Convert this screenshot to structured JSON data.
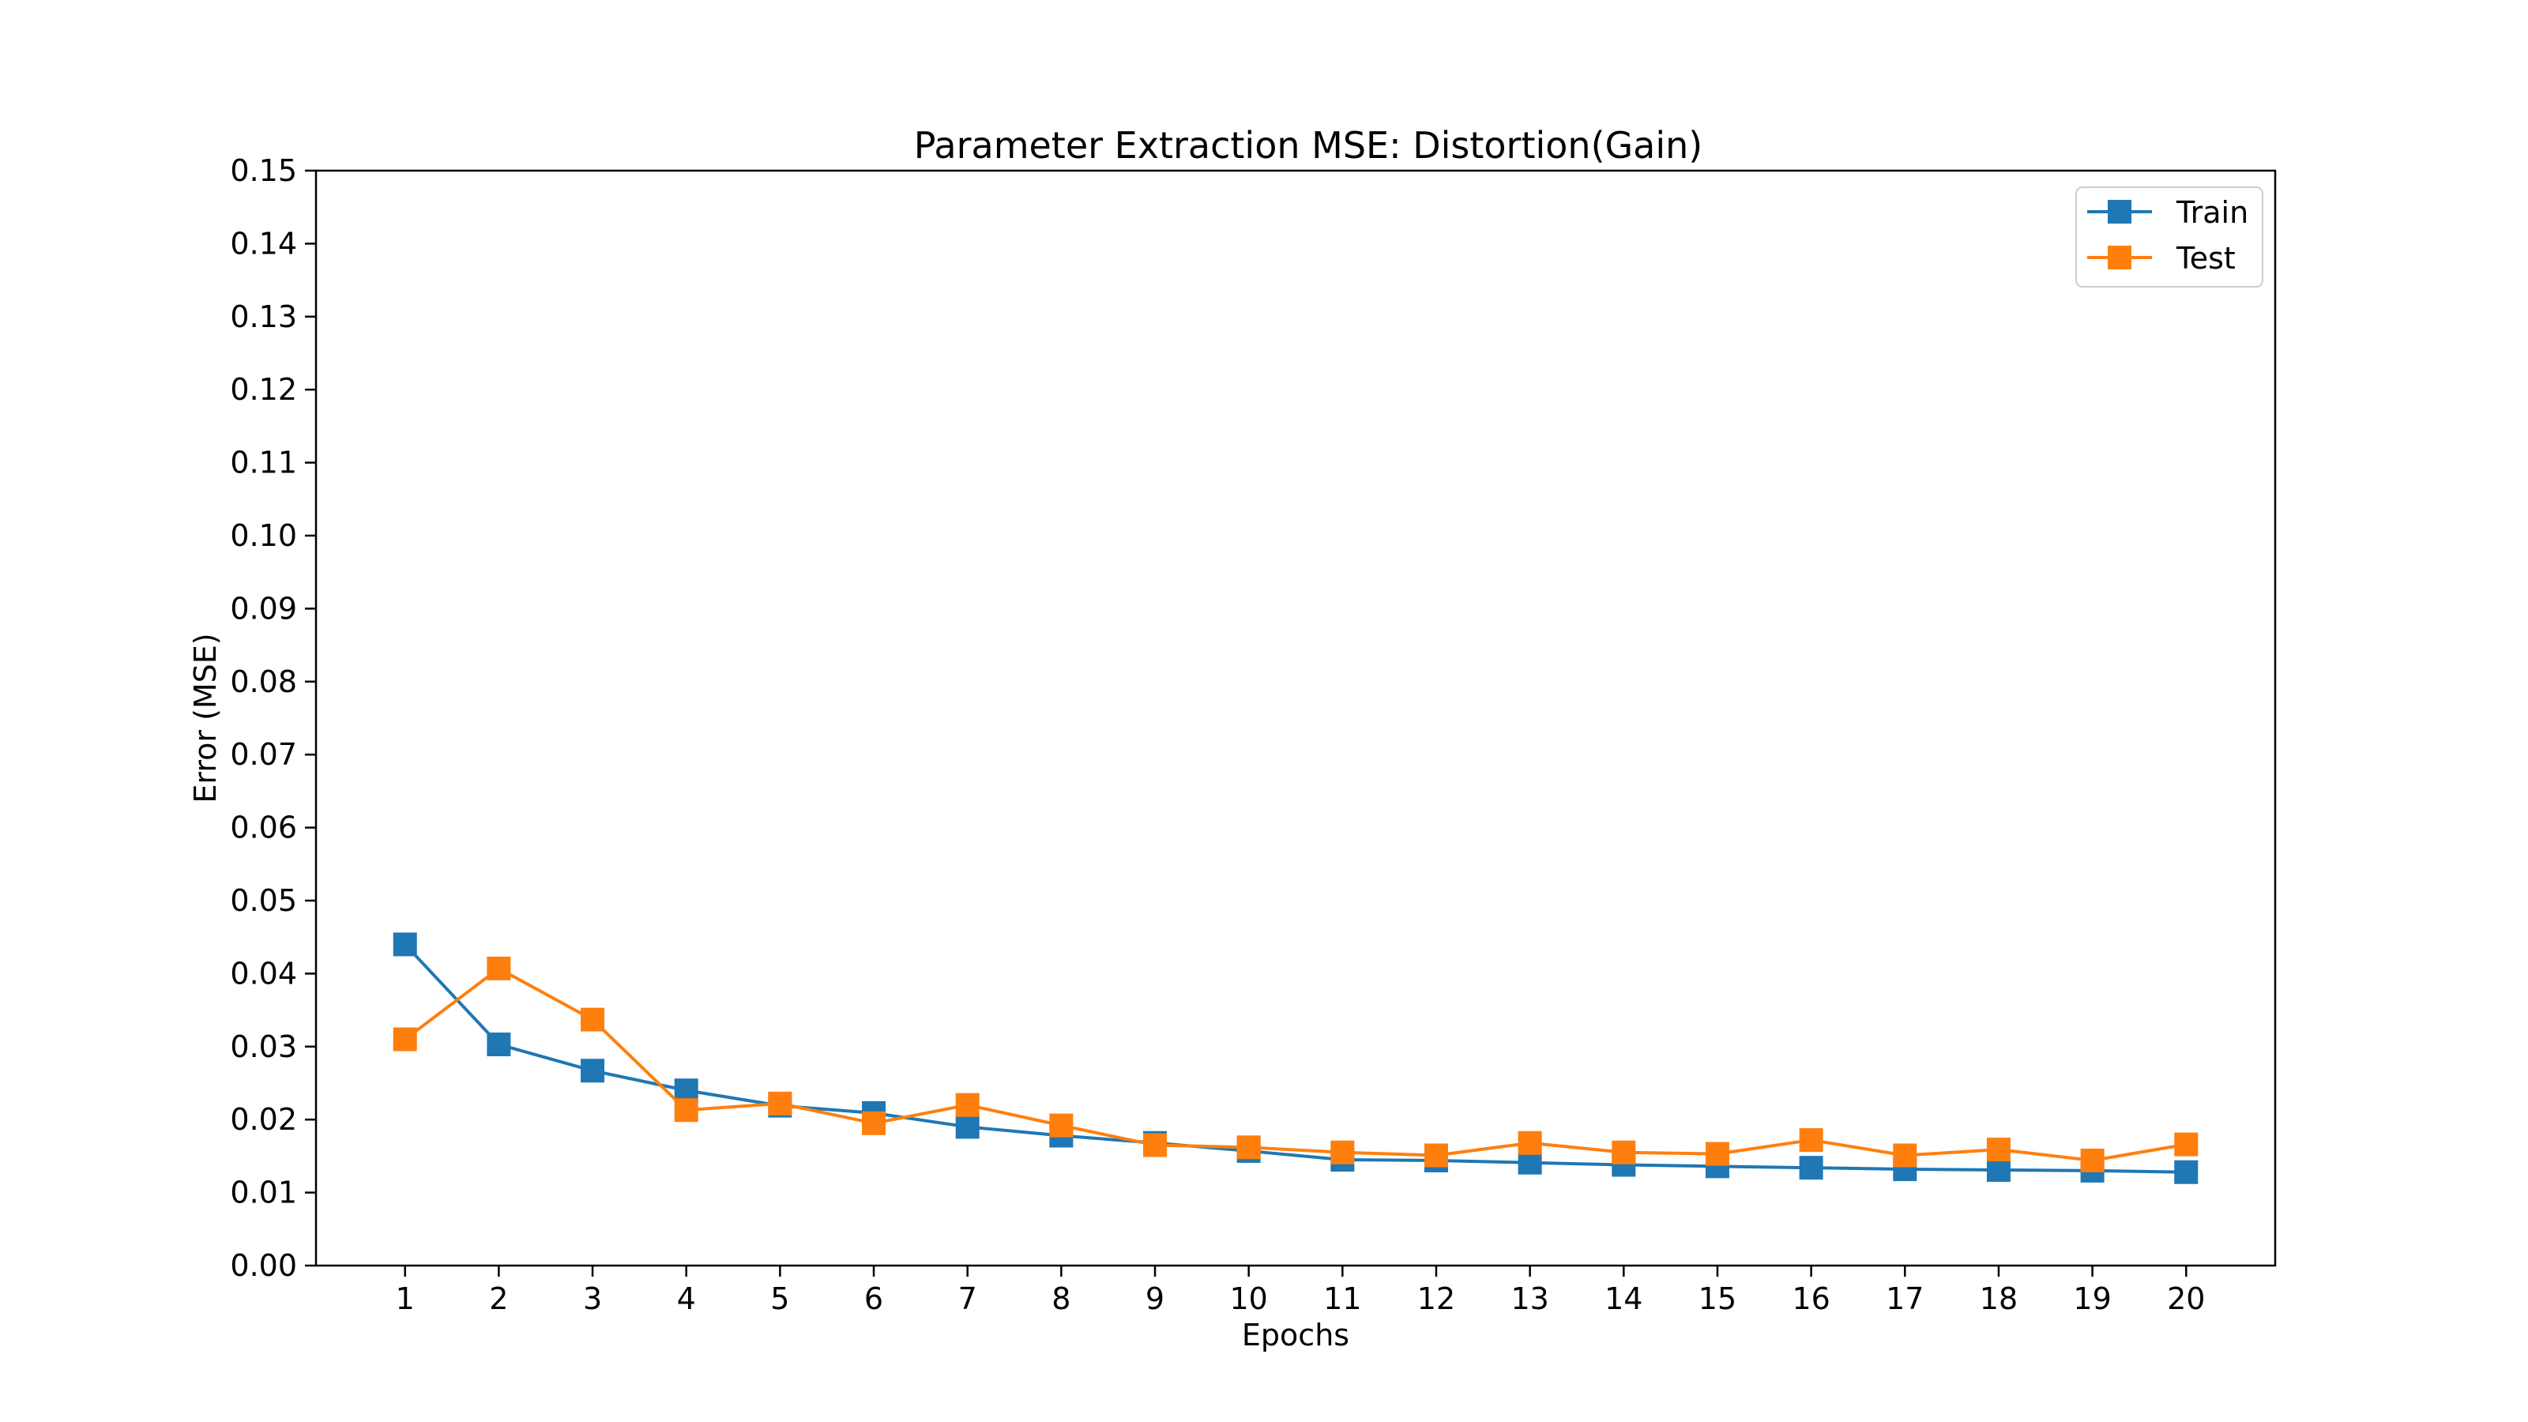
{
  "chart_data": {
    "type": "line",
    "title": "Parameter Extraction MSE: Distortion(Gain)",
    "xlabel": "Epochs",
    "ylabel": "Error (MSE)",
    "x": [
      1,
      2,
      3,
      4,
      5,
      6,
      7,
      8,
      9,
      10,
      11,
      12,
      13,
      14,
      15,
      16,
      17,
      18,
      19,
      20
    ],
    "x_tick_labels": [
      "1",
      "2",
      "3",
      "4",
      "5",
      "6",
      "7",
      "8",
      "9",
      "10",
      "11",
      "12",
      "13",
      "14",
      "15",
      "16",
      "17",
      "18",
      "19",
      "20"
    ],
    "ylim": [
      0.0,
      0.15
    ],
    "y_ticks": [
      0.0,
      0.01,
      0.02,
      0.03,
      0.04,
      0.05,
      0.06,
      0.07,
      0.08,
      0.09,
      0.1,
      0.11,
      0.12,
      0.13,
      0.14,
      0.15
    ],
    "y_tick_labels": [
      "0.00",
      "0.01",
      "0.02",
      "0.03",
      "0.04",
      "0.05",
      "0.06",
      "0.07",
      "0.08",
      "0.09",
      "0.10",
      "0.11",
      "0.12",
      "0.13",
      "0.14",
      "0.15"
    ],
    "grid": false,
    "legend_position": "top-right",
    "marker": "square",
    "series": [
      {
        "name": "Train",
        "color": "#1f77b4",
        "values": [
          0.044,
          0.0303,
          0.0267,
          0.024,
          0.0219,
          0.0209,
          0.019,
          0.0178,
          0.0168,
          0.0157,
          0.0145,
          0.0144,
          0.0141,
          0.0138,
          0.0136,
          0.0134,
          0.0132,
          0.0131,
          0.013,
          0.0128
        ]
      },
      {
        "name": "Test",
        "color": "#ff7f0e",
        "values": [
          0.031,
          0.0407,
          0.0337,
          0.0213,
          0.0222,
          0.0195,
          0.022,
          0.0192,
          0.0165,
          0.0162,
          0.0155,
          0.0151,
          0.0168,
          0.0155,
          0.0153,
          0.0172,
          0.0151,
          0.0159,
          0.0144,
          0.0166
        ]
      }
    ]
  }
}
